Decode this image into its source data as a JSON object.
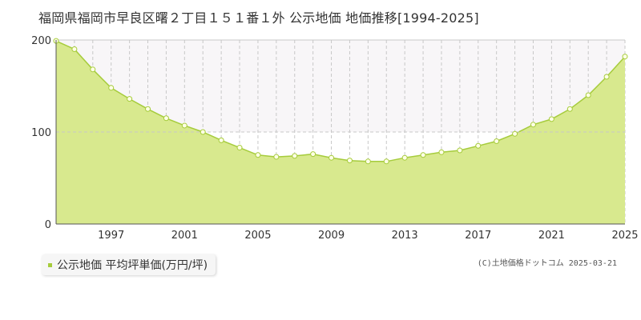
{
  "page": {
    "title": "福岡県福岡市早良区曙２丁目１５１番１外 公示地価 地価推移[1994-2025]",
    "credit": "(C)土地価格ドットコム 2025-03-21"
  },
  "colors": {
    "area_fill": "#d8e98e",
    "line": "#a6cc3c",
    "marker_fill": "#ffffe6",
    "grid": "#c8c8c8",
    "band": "#f8f6f8"
  },
  "chart_data": {
    "type": "area",
    "x": [
      1994,
      1995,
      1996,
      1997,
      1998,
      1999,
      2000,
      2001,
      2002,
      2003,
      2004,
      2005,
      2006,
      2007,
      2008,
      2009,
      2010,
      2011,
      2012,
      2013,
      2014,
      2015,
      2016,
      2017,
      2018,
      2019,
      2020,
      2021,
      2022,
      2023,
      2024,
      2025
    ],
    "series": [
      {
        "name": "公示地価 平均坪単価(万円/坪)",
        "values": [
          199,
          190,
          168,
          148,
          136,
          125,
          115,
          107,
          100,
          91,
          83,
          75,
          73,
          74,
          76,
          72,
          69,
          68,
          68,
          72,
          75,
          78,
          80,
          85,
          90,
          98,
          108,
          114,
          125,
          140,
          160,
          182
        ]
      }
    ],
    "ylim": [
      0,
      200
    ],
    "yticks": [
      "0",
      "100",
      "200"
    ],
    "xticks": [
      "1997",
      "2001",
      "2005",
      "2009",
      "2013",
      "2017",
      "2021",
      "2025"
    ],
    "xlabel": "",
    "ylabel": "",
    "grid": true,
    "legend": "bottom-left"
  }
}
